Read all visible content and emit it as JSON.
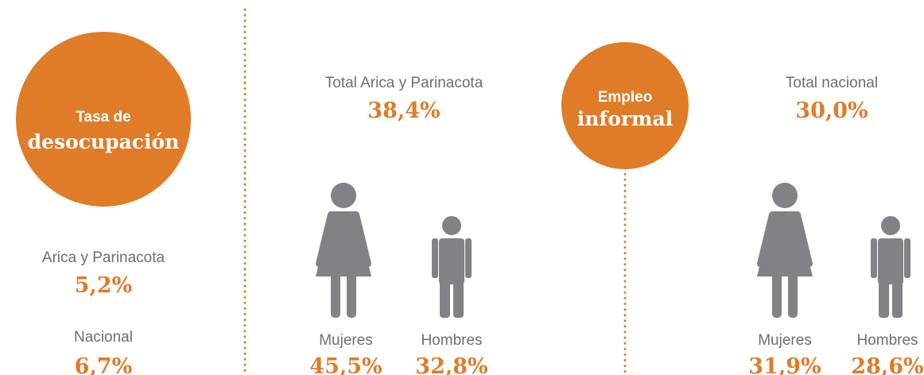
{
  "desocupacion": {
    "title_small": "Tasa de",
    "title_big": "desocupación",
    "items": [
      {
        "label": "Arica y Parinacota",
        "value": "5,2%"
      },
      {
        "label": "Nacional",
        "value": "6,7%"
      }
    ]
  },
  "regional": {
    "label": "Total Arica y Parinacota",
    "value": "38,4%",
    "women": {
      "label": "Mujeres",
      "value": "45,5%"
    },
    "men": {
      "label": "Hombres",
      "value": "32,8%"
    }
  },
  "informal": {
    "title_small": "Empleo",
    "title_big": "informal"
  },
  "nacional": {
    "label": "Total nacional",
    "value": "30,0%",
    "women": {
      "label": "Mujeres",
      "value": "31,9%"
    },
    "men": {
      "label": "Hombres",
      "value": "28,6%"
    }
  }
}
